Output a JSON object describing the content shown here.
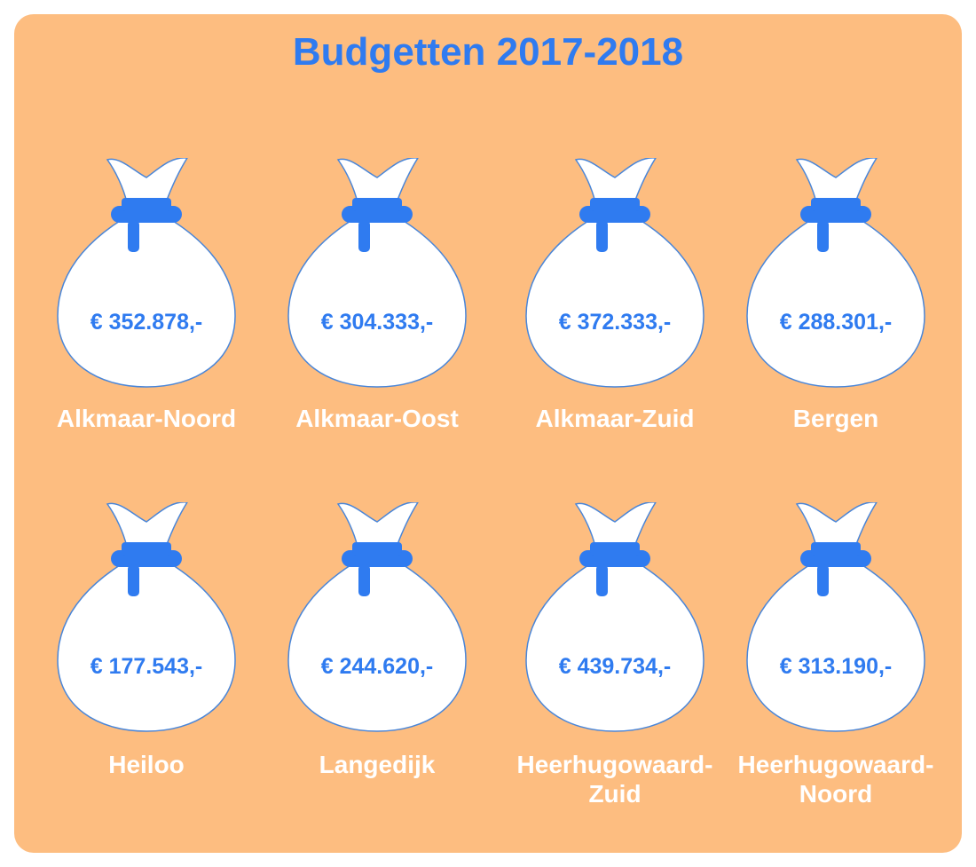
{
  "title": "Budgetten 2017-2018",
  "colors": {
    "background": "#fdbd80",
    "accent": "#2f7bf0",
    "bag_fill": "#ffffff",
    "label": "#ffffff"
  },
  "bags": [
    {
      "amount": "€ 352.878,-",
      "name": "Alkmaar-Noord"
    },
    {
      "amount": "€ 304.333,-",
      "name": "Alkmaar-Oost"
    },
    {
      "amount": "€ 372.333,-",
      "name": "Alkmaar-Zuid"
    },
    {
      "amount": "€ 288.301,-",
      "name": "Bergen"
    },
    {
      "amount": "€ 177.543,-",
      "name": "Heiloo"
    },
    {
      "amount": "€ 244.620,-",
      "name": "Langedijk"
    },
    {
      "amount": "€ 439.734,-",
      "name": "Heerhugowaard-\nZuid"
    },
    {
      "amount": "€ 313.190,-",
      "name": "Heerhugowaard-\nNoord"
    }
  ]
}
